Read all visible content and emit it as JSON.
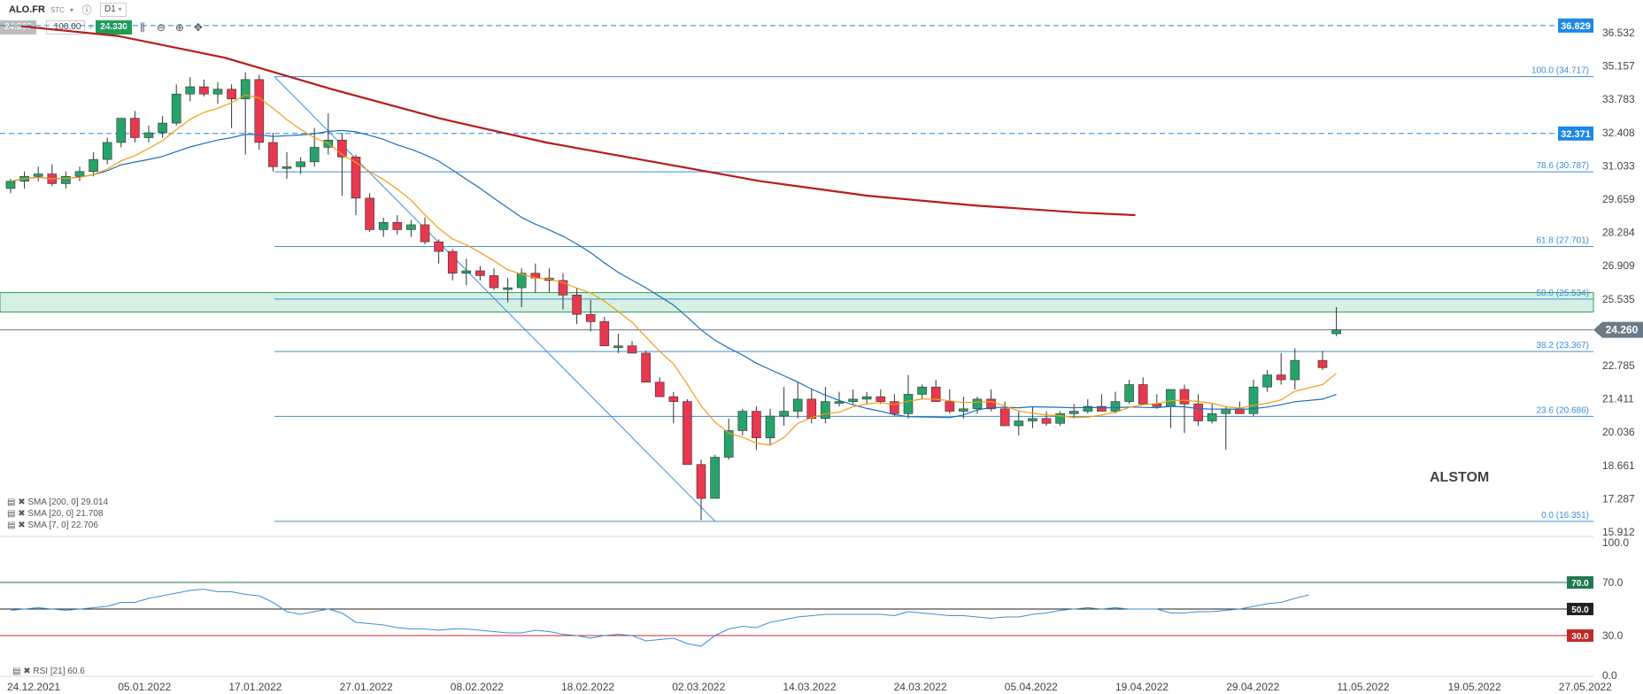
{
  "toolbar": {
    "symbol": "ALO.FR",
    "exchange": "STC",
    "interval": "D1",
    "sell_price": "24.260",
    "quantity": "100.00",
    "buy_price": "24.330",
    "icons": [
      "candles-icon",
      "zoom-out-icon",
      "zoom-in-icon",
      "move-icon"
    ]
  },
  "watermark": "ALSTOM",
  "price_axis_ticks": [
    "36.532",
    "35.157",
    "33.783",
    "32.408",
    "31.033",
    "29.659",
    "28.284",
    "26.909",
    "25.535",
    "24.160",
    "22.785",
    "21.411",
    "20.036",
    "18.661",
    "17.287",
    "15.912"
  ],
  "price_badges": [
    {
      "label": "36.829",
      "value": 36.829,
      "color": "#1e88e5",
      "style": "dashed"
    },
    {
      "label": "32.371",
      "value": 32.371,
      "color": "#1e88e5",
      "style": "dashed"
    },
    {
      "label": "24.260",
      "value": 24.26,
      "color": "#6b7a88",
      "style": "current"
    }
  ],
  "fibonacci": [
    {
      "label": "100.0 (34.717)",
      "value": 34.717
    },
    {
      "label": "78.6 (30.787)",
      "value": 30.787
    },
    {
      "label": "61.8 (27.701)",
      "value": 27.701
    },
    {
      "label": "50.0 (25.534)",
      "value": 25.534
    },
    {
      "label": "38.2 (23.367)",
      "value": 23.367
    },
    {
      "label": "23.6 (20.686)",
      "value": 20.686
    },
    {
      "label": "0.0 (16.351)",
      "value": 16.351
    }
  ],
  "resistance_zone": [
    25.0,
    25.8
  ],
  "legend": [
    {
      "text": "SMA [200, 0] 29.014",
      "color": "#b71c1c"
    },
    {
      "text": "SMA [20, 0] 21.708",
      "color": "#1e6fb5"
    },
    {
      "text": "SMA [7, 0] 22.706",
      "color": "#f39c12"
    }
  ],
  "rsi": {
    "legend": "RSI [21] 60.6",
    "axis_ticks": [
      "100.0",
      "70.0",
      "30.0",
      "0.0"
    ],
    "levels": [
      {
        "label": "70.0",
        "value": 70,
        "color": "#1f7a4d"
      },
      {
        "label": "50.0",
        "value": 50,
        "color": "#222222"
      },
      {
        "label": "30.0",
        "value": 30,
        "color": "#c62828"
      }
    ]
  },
  "date_labels": [
    "24.12.2021",
    "05.01.2022",
    "17.01.2022",
    "27.01.2022",
    "08.02.2022",
    "18.02.2022",
    "02.03.2022",
    "14.03.2022",
    "24.03.2022",
    "05.04.2022",
    "19.04.2022",
    "29.04.2022",
    "11.05.2022",
    "19.05.2022",
    "27.05.2022"
  ],
  "chart_data": {
    "type": "candlestick",
    "interval": "D1",
    "x": [
      "2021-12-24",
      "2021-12-27",
      "2021-12-28",
      "2021-12-29",
      "2021-12-30",
      "2021-12-31",
      "2022-01-03",
      "2022-01-04",
      "2022-01-05",
      "2022-01-06",
      "2022-01-07",
      "2022-01-10",
      "2022-01-11",
      "2022-01-12",
      "2022-01-13",
      "2022-01-14",
      "2022-01-17",
      "2022-01-18",
      "2022-01-19",
      "2022-01-20",
      "2022-01-21",
      "2022-01-24",
      "2022-01-25",
      "2022-01-26",
      "2022-01-27",
      "2022-01-28",
      "2022-01-31",
      "2022-02-01",
      "2022-02-02",
      "2022-02-03",
      "2022-02-04",
      "2022-02-07",
      "2022-02-08",
      "2022-02-09",
      "2022-02-10",
      "2022-02-11",
      "2022-02-14",
      "2022-02-15",
      "2022-02-16",
      "2022-02-17",
      "2022-02-18",
      "2022-02-21",
      "2022-02-22",
      "2022-02-23",
      "2022-02-24",
      "2022-02-25",
      "2022-02-28",
      "2022-03-01",
      "2022-03-02",
      "2022-03-03",
      "2022-03-04",
      "2022-03-07",
      "2022-03-08",
      "2022-03-09",
      "2022-03-10",
      "2022-03-11",
      "2022-03-14",
      "2022-03-15",
      "2022-03-16",
      "2022-03-17",
      "2022-03-18",
      "2022-03-21",
      "2022-03-22",
      "2022-03-23",
      "2022-03-24",
      "2022-03-25",
      "2022-03-28",
      "2022-03-29",
      "2022-03-30",
      "2022-03-31",
      "2022-04-01",
      "2022-04-04",
      "2022-04-05",
      "2022-04-06",
      "2022-04-07",
      "2022-04-08",
      "2022-04-11",
      "2022-04-12",
      "2022-04-13",
      "2022-04-14",
      "2022-04-19",
      "2022-04-20",
      "2022-04-21",
      "2022-04-22",
      "2022-04-25",
      "2022-04-26",
      "2022-04-27",
      "2022-04-28",
      "2022-04-29",
      "2022-05-02",
      "2022-05-03",
      "2022-05-04",
      "2022-05-05",
      "2022-05-06"
    ],
    "open": [
      30.1,
      30.4,
      30.6,
      30.7,
      30.3,
      30.6,
      30.8,
      31.3,
      32.0,
      33.0,
      32.2,
      32.4,
      32.8,
      34.0,
      34.3,
      34.0,
      34.2,
      33.8,
      34.6,
      32.0,
      31.0,
      31.0,
      31.2,
      31.8,
      32.1,
      31.4,
      29.7,
      28.4,
      28.7,
      28.4,
      28.6,
      27.9,
      27.5,
      26.6,
      26.7,
      26.5,
      26.0,
      26.0,
      26.6,
      26.4,
      26.3,
      25.7,
      24.9,
      24.6,
      23.6,
      23.6,
      23.3,
      22.1,
      21.5,
      21.3,
      18.7,
      17.3,
      19.0,
      20.1,
      20.9,
      19.8,
      20.7,
      20.9,
      21.4,
      20.6,
      21.3,
      21.3,
      21.4,
      21.5,
      21.3,
      20.8,
      21.6,
      21.9,
      21.3,
      20.9,
      21.0,
      21.4,
      21.0,
      20.3,
      20.5,
      20.6,
      20.4,
      20.8,
      20.9,
      21.1,
      20.9,
      21.3,
      22.0,
      21.2,
      21.1,
      21.8,
      21.2,
      20.5,
      20.8,
      21.0,
      20.8,
      21.9,
      22.4,
      22.2
    ],
    "high": [
      30.5,
      30.8,
      31.0,
      31.1,
      30.8,
      31.0,
      31.6,
      32.2,
      32.9,
      33.3,
      32.7,
      33.1,
      34.4,
      34.7,
      34.6,
      34.5,
      34.4,
      34.9,
      34.8,
      32.4,
      31.6,
      31.4,
      32.6,
      33.2,
      32.4,
      31.5,
      29.9,
      28.9,
      29.0,
      28.8,
      28.9,
      28.0,
      27.6,
      27.2,
      26.9,
      26.8,
      26.4,
      26.8,
      27.0,
      26.8,
      26.6,
      26.0,
      25.5,
      24.8,
      24.1,
      23.8,
      23.4,
      22.3,
      21.7,
      21.4,
      18.9,
      19.1,
      20.6,
      21.0,
      21.1,
      21.0,
      21.9,
      22.1,
      21.8,
      21.9,
      21.7,
      21.8,
      21.7,
      21.8,
      21.6,
      22.4,
      22.0,
      22.2,
      21.8,
      21.5,
      21.5,
      21.8,
      21.3,
      20.9,
      21.1,
      20.9,
      20.9,
      21.2,
      21.4,
      21.6,
      21.7,
      22.2,
      22.3,
      21.6,
      21.8,
      22.0,
      21.6,
      21.2,
      21.1,
      21.3,
      22.2,
      22.6,
      23.3,
      23.5
    ],
    "low": [
      29.9,
      30.1,
      30.4,
      30.2,
      30.1,
      30.4,
      30.6,
      31.1,
      31.8,
      32.0,
      32.0,
      32.2,
      32.7,
      33.7,
      33.9,
      33.6,
      32.6,
      31.5,
      31.7,
      30.8,
      30.5,
      30.7,
      31.0,
      31.5,
      29.8,
      29.0,
      28.3,
      28.1,
      28.2,
      28.1,
      27.8,
      27.0,
      26.3,
      26.1,
      26.3,
      25.9,
      25.4,
      25.2,
      25.8,
      25.8,
      25.1,
      24.5,
      24.2,
      23.8,
      23.3,
      23.3,
      22.2,
      21.7,
      20.4,
      18.7,
      16.4,
      17.3,
      18.9,
      19.9,
      19.3,
      19.5,
      20.3,
      20.6,
      20.4,
      20.4,
      21.1,
      21.2,
      21.2,
      21.2,
      20.7,
      20.6,
      21.4,
      21.3,
      20.8,
      20.6,
      20.8,
      20.9,
      20.3,
      19.9,
      20.2,
      20.3,
      20.3,
      20.6,
      20.8,
      20.9,
      20.8,
      21.2,
      21.2,
      21.0,
      20.2,
      20.0,
      20.3,
      20.4,
      19.3,
      20.8,
      20.7,
      21.7,
      22.0,
      21.8
    ],
    "close": [
      30.4,
      30.6,
      30.7,
      30.3,
      30.6,
      30.8,
      31.3,
      32.0,
      33.0,
      32.2,
      32.4,
      32.8,
      34.0,
      34.3,
      34.0,
      34.2,
      33.8,
      34.6,
      32.0,
      31.0,
      31.0,
      31.2,
      31.8,
      32.1,
      31.4,
      29.7,
      28.4,
      28.7,
      28.4,
      28.6,
      27.9,
      27.5,
      26.6,
      26.7,
      26.5,
      26.0,
      26.0,
      26.6,
      26.4,
      26.3,
      25.7,
      24.9,
      24.6,
      23.6,
      23.6,
      23.3,
      22.1,
      21.5,
      21.3,
      18.7,
      17.3,
      19.0,
      20.1,
      20.9,
      19.8,
      20.7,
      20.9,
      21.4,
      20.6,
      21.3,
      21.3,
      21.4,
      21.5,
      21.3,
      20.8,
      21.6,
      21.9,
      21.3,
      20.9,
      21.0,
      21.4,
      21.0,
      20.3,
      20.5,
      20.6,
      20.4,
      20.8,
      20.9,
      21.1,
      20.9,
      21.3,
      22.0,
      21.2,
      21.1,
      21.8,
      21.2,
      20.5,
      20.8,
      21.0,
      20.8,
      21.9,
      22.4,
      22.2,
      23.0
    ],
    "extra_candles": [
      {
        "date": "2022-05-09",
        "open": 23.0,
        "high": 23.4,
        "low": 22.6,
        "close": 22.7
      },
      {
        "date": "2022-05-10",
        "open": 24.1,
        "high": 25.2,
        "low": 24.0,
        "close": 24.26
      }
    ],
    "sma200": {
      "start": 30.1,
      "points": [
        [
          2,
          36.8
        ],
        [
          20,
          36.4
        ],
        [
          40,
          35.5
        ],
        [
          60,
          34.2
        ],
        [
          80,
          33.0
        ],
        [
          100,
          32.0
        ],
        [
          120,
          31.2
        ],
        [
          140,
          30.4
        ],
        [
          160,
          29.8
        ],
        [
          180,
          29.4
        ],
        [
          200,
          29.1
        ],
        [
          210,
          29.0
        ]
      ]
    },
    "sma20_shape": "smoothed moving average",
    "ylim": [
      15.912,
      37.0
    ],
    "rsi_values": [
      49,
      50,
      51,
      50,
      49,
      50,
      51,
      52,
      55,
      55,
      58,
      60,
      62,
      64,
      65,
      63,
      63,
      61,
      60,
      55,
      48,
      46,
      48,
      50,
      47,
      40,
      39,
      38,
      36,
      35,
      35,
      34,
      35,
      35,
      34,
      33,
      32,
      32,
      34,
      33,
      31,
      30,
      28,
      30,
      31,
      30,
      26,
      27,
      28,
      24,
      22,
      30,
      35,
      37,
      36,
      40,
      42,
      44,
      45,
      46,
      46,
      46,
      46,
      46,
      45,
      48,
      47,
      46,
      45,
      45,
      44,
      43,
      44,
      44,
      46,
      47,
      49,
      50,
      51,
      50,
      51,
      50,
      50,
      50,
      47,
      47,
      48,
      48,
      49,
      50,
      52,
      54,
      55,
      58,
      60.6
    ],
    "rsi_ylim": [
      0,
      100
    ]
  }
}
